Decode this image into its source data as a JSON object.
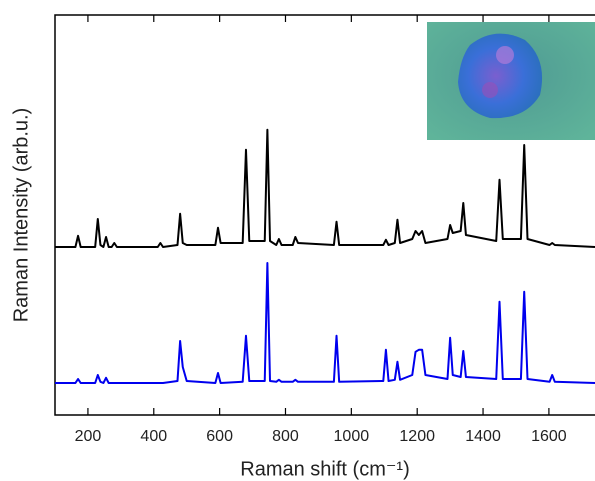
{
  "chart_data": {
    "type": "line",
    "xlabel": "Raman shift (cm⁻¹)",
    "ylabel": "Raman Intensity (arb.u.)",
    "xlim": [
      100,
      1740
    ],
    "ylim": [
      0,
      100
    ],
    "xticks": [
      200,
      400,
      600,
      800,
      1000,
      1200,
      1400,
      1600
    ],
    "x": [
      100,
      162,
      170,
      178,
      222,
      230,
      238,
      247,
      255,
      263,
      272,
      280,
      288,
      412,
      420,
      428,
      472,
      480,
      488,
      500,
      587,
      595,
      603,
      670,
      680,
      690,
      737,
      745,
      753,
      772,
      780,
      788,
      822,
      830,
      838,
      947,
      955,
      963,
      1097,
      1105,
      1113,
      1132,
      1140,
      1148,
      1185,
      1195,
      1205,
      1215,
      1225,
      1292,
      1300,
      1308,
      1332,
      1340,
      1348,
      1440,
      1450,
      1460,
      1515,
      1525,
      1535,
      1602,
      1610,
      1618,
      1740
    ],
    "series": [
      {
        "color": "#000000",
        "values": [
          42,
          42,
          44.8,
          42,
          42,
          49,
          42.5,
          42,
          44.5,
          42,
          42,
          43,
          42,
          42,
          43,
          42,
          42.5,
          50.3,
          43,
          42.5,
          42.5,
          46.8,
          43,
          43,
          66.3,
          43.5,
          43.5,
          71.3,
          43.5,
          42.5,
          44,
          42.5,
          42.5,
          44.5,
          43,
          42.5,
          48.3,
          42.5,
          42.5,
          43.8,
          42.5,
          43,
          48.8,
          43,
          44,
          46,
          45,
          46,
          43,
          44,
          47.5,
          45.5,
          46,
          53,
          45,
          43.5,
          58.8,
          44,
          44,
          67.5,
          44,
          42.5,
          43,
          42.5,
          42
        ]
      },
      {
        "color": "#0000ee",
        "values": [
          8,
          8,
          9,
          8,
          8,
          10,
          8.3,
          8,
          9.3,
          8,
          8,
          8,
          8,
          8,
          8,
          8,
          8.5,
          18.5,
          12,
          8.5,
          8,
          10.5,
          8,
          8.3,
          19.8,
          8.5,
          8.5,
          38,
          8.5,
          8.3,
          8.8,
          8.3,
          8.3,
          8.8,
          8.3,
          8.3,
          19.8,
          8.3,
          8.5,
          16.3,
          8.5,
          8.8,
          13.3,
          8.8,
          10,
          15.8,
          16.3,
          16.3,
          10,
          9,
          19.3,
          10,
          9.5,
          16,
          9.5,
          9,
          28.3,
          9,
          9,
          30.8,
          9,
          8.3,
          10,
          8.3,
          8
        ]
      }
    ]
  }
}
